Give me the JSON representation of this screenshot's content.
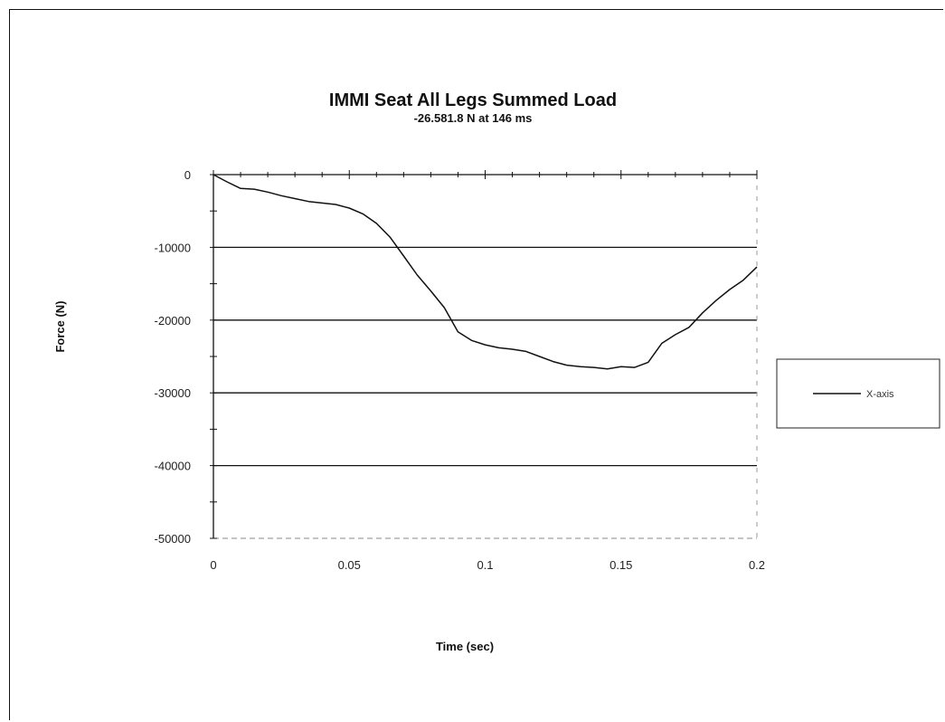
{
  "chart_data": {
    "type": "line",
    "title": "IMMI Seat All Legs Summed Load",
    "subtitle": "-26.581.8 N at 146 ms",
    "xlabel": "Time (sec)",
    "ylabel": "Force (N)",
    "xlim": [
      0,
      0.2
    ],
    "ylim": [
      -50000,
      0
    ],
    "x_ticks": [
      0,
      0.05,
      0.1,
      0.15,
      0.2
    ],
    "x_tick_labels": [
      "0",
      "0.05",
      "0.1",
      "0.15",
      "0.2"
    ],
    "y_ticks": [
      0,
      -10000,
      -20000,
      -30000,
      -40000,
      -50000
    ],
    "y_tick_labels": [
      "0",
      "-10000",
      "-20000",
      "-30000",
      "-40000",
      "-50000"
    ],
    "grid": "horizontal",
    "legend_position": "right",
    "series": [
      {
        "name": "X-axis",
        "color": "#111111",
        "x": [
          0,
          0.005,
          0.01,
          0.015,
          0.02,
          0.025,
          0.03,
          0.035,
          0.04,
          0.045,
          0.05,
          0.055,
          0.06,
          0.065,
          0.07,
          0.075,
          0.08,
          0.085,
          0.09,
          0.095,
          0.1,
          0.105,
          0.11,
          0.115,
          0.12,
          0.125,
          0.13,
          0.135,
          0.14,
          0.145,
          0.15,
          0.155,
          0.16,
          0.165,
          0.17,
          0.175,
          0.18,
          0.185,
          0.19,
          0.195,
          0.2
        ],
        "values": [
          0,
          -1000,
          -1900,
          -2000,
          -2400,
          -2900,
          -3300,
          -3700,
          -3900,
          -4100,
          -4600,
          -5400,
          -6700,
          -8600,
          -11200,
          -13800,
          -16000,
          -18300,
          -21600,
          -22800,
          -23400,
          -23800,
          -24000,
          -24300,
          -25000,
          -25700,
          -26200,
          -26400,
          -26500,
          -26700,
          -26400,
          -26500,
          -25800,
          -23200,
          -22000,
          -21000,
          -19000,
          -17300,
          -15800,
          -14500,
          -12700
        ]
      }
    ]
  }
}
